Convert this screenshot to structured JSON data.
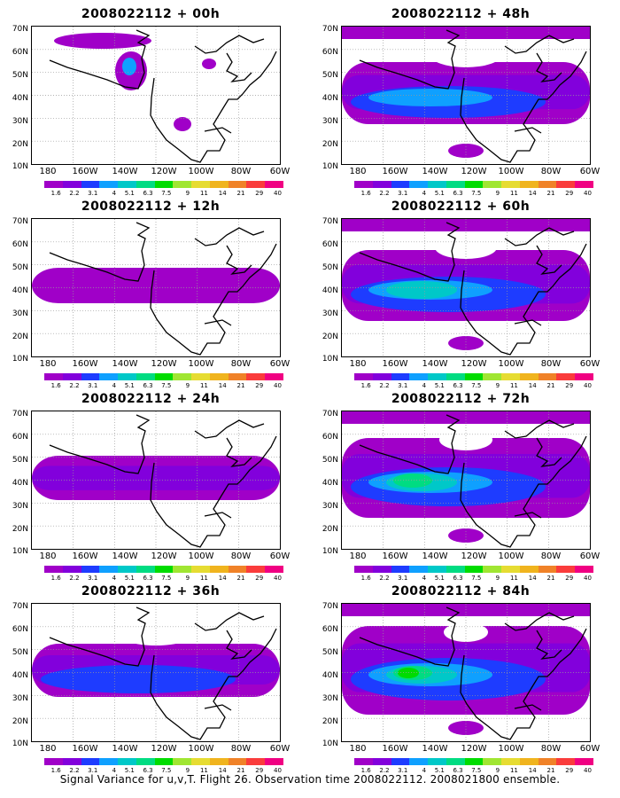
{
  "panels": [
    {
      "title": "2008022112 + 00h",
      "intensity": 0
    },
    {
      "title": "2008022112 + 48h",
      "intensity": 4
    },
    {
      "title": "2008022112 + 12h",
      "intensity": 1
    },
    {
      "title": "2008022112 + 60h",
      "intensity": 5
    },
    {
      "title": "2008022112 + 24h",
      "intensity": 2
    },
    {
      "title": "2008022112 + 72h",
      "intensity": 6
    },
    {
      "title": "2008022112 + 36h",
      "intensity": 3
    },
    {
      "title": "2008022112 + 84h",
      "intensity": 7
    }
  ],
  "y_ticks": [
    "70N",
    "60N",
    "50N",
    "40N",
    "30N",
    "20N",
    "10N"
  ],
  "x_ticks": [
    "180",
    "160W",
    "140W",
    "120W",
    "100W",
    "80W",
    "60W"
  ],
  "colorbar": {
    "labels": [
      "1.6",
      "2.2",
      "3.1",
      "4",
      "5.1",
      "6.3",
      "7.5",
      "9",
      "11",
      "14",
      "21",
      "29",
      "40"
    ],
    "colors": [
      "#a000c8",
      "#8200dc",
      "#1e3cff",
      "#0fa0ff",
      "#00c8c8",
      "#00dc82",
      "#00dc00",
      "#a0e632",
      "#e6dc32",
      "#f0b41e",
      "#f08228",
      "#fa3c3c",
      "#f00082"
    ]
  },
  "caption": "Signal Variance for u,v,T. Flight 26. Observation time 2008022112. 2008021800 ensemble."
}
